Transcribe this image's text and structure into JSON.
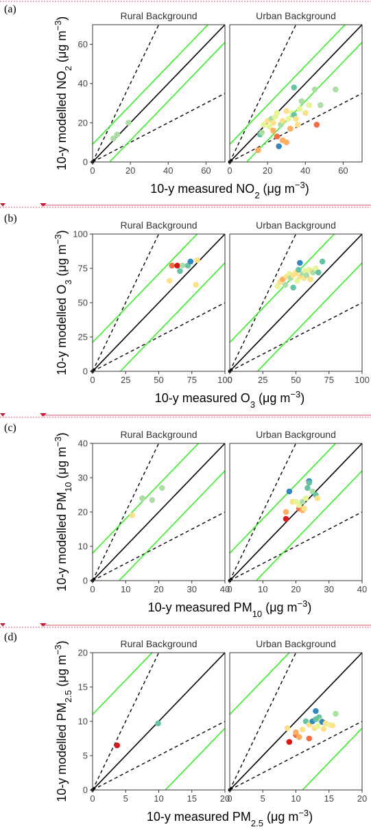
{
  "figure": {
    "colors": {
      "identity": "#000000",
      "factor_two": "#000000",
      "nmb": "#33ee22",
      "palette": [
        "#d7191c",
        "#f46d43",
        "#fdae61",
        "#fee08b",
        "#e6f598",
        "#abdda4",
        "#66c2a5",
        "#3288bd"
      ]
    },
    "separator_color": "#c41e3a"
  },
  "chart_data": [
    {
      "type": "scatter",
      "panel_label": "(a)",
      "xlabel": {
        "pre": "10-y measured NO",
        "sub": "2",
        "post": " (μg m",
        "sup": "−3",
        "end": ")"
      },
      "ylabel": {
        "pre": "10-y modelled NO",
        "sub": "2",
        "post": " (μg m",
        "sup": "−3",
        "end": ")"
      },
      "xlim": [
        0,
        70
      ],
      "ylim": [
        0,
        70
      ],
      "ticks": [
        0,
        20,
        40,
        60
      ],
      "nmb_offset": 9,
      "facets": [
        {
          "title": "Rural Background",
          "points": [
            [
              11,
              12,
              5
            ],
            [
              13,
              14,
              5
            ],
            [
              19,
              20,
              5
            ]
          ]
        },
        {
          "title": "Urban Background",
          "points": [
            [
              15,
              6,
              2
            ],
            [
              16,
              14,
              6
            ],
            [
              17,
              15,
              5
            ],
            [
              18,
              19,
              4
            ],
            [
              20,
              21,
              3
            ],
            [
              21,
              18,
              4
            ],
            [
              22,
              22,
              5
            ],
            [
              23,
              20,
              3
            ],
            [
              23,
              16,
              2
            ],
            [
              24,
              23,
              4
            ],
            [
              25,
              25,
              4
            ],
            [
              25,
              13,
              1
            ],
            [
              26,
              8,
              7
            ],
            [
              27,
              19,
              5
            ],
            [
              28,
              21,
              3
            ],
            [
              28,
              11,
              2
            ],
            [
              30,
              10,
              2
            ],
            [
              30,
              26,
              3
            ],
            [
              31,
              22,
              4
            ],
            [
              32,
              17,
              2
            ],
            [
              33,
              25,
              4
            ],
            [
              34,
              24,
              6
            ],
            [
              34,
              38,
              6
            ],
            [
              35,
              22,
              3
            ],
            [
              36,
              19,
              3
            ],
            [
              37,
              27,
              4
            ],
            [
              38,
              31,
              5
            ],
            [
              40,
              25,
              3
            ],
            [
              42,
              29,
              4
            ],
            [
              45,
              37,
              5
            ],
            [
              46,
              19,
              1
            ],
            [
              48,
              29,
              5
            ],
            [
              56,
              37,
              5
            ]
          ]
        }
      ]
    },
    {
      "type": "scatter",
      "panel_label": "(b)",
      "xlabel": {
        "pre": "10-y measured O",
        "sub": "3",
        "post": " (μg m",
        "sup": "−3",
        "end": ")"
      },
      "ylabel": {
        "pre": "10-y modelled O",
        "sub": "3",
        "post": " (μg m",
        "sup": "−3",
        "end": ")"
      },
      "xlim": [
        0,
        100
      ],
      "ylim": [
        0,
        100
      ],
      "ticks": [
        0,
        25,
        50,
        75,
        100
      ],
      "nmb_offset": 21,
      "facets": [
        {
          "title": "Rural Background",
          "points": [
            [
              58,
              66,
              3
            ],
            [
              60,
              77,
              1
            ],
            [
              64,
              77,
              0
            ],
            [
              66,
              73,
              6
            ],
            [
              68,
              77,
              5
            ],
            [
              72,
              77,
              6
            ],
            [
              74,
              80,
              7
            ],
            [
              78,
              63,
              3
            ],
            [
              79,
              81,
              3
            ]
          ]
        },
        {
          "title": "Urban Background",
          "points": [
            [
              36,
              62,
              4
            ],
            [
              38,
              65,
              3
            ],
            [
              40,
              67,
              2
            ],
            [
              42,
              63,
              5
            ],
            [
              43,
              69,
              3
            ],
            [
              45,
              71,
              4
            ],
            [
              46,
              68,
              5
            ],
            [
              48,
              70,
              3
            ],
            [
              48,
              61,
              6
            ],
            [
              50,
              72,
              3
            ],
            [
              51,
              66,
              4
            ],
            [
              52,
              74,
              6
            ],
            [
              53,
              69,
              3
            ],
            [
              53,
              79,
              7
            ],
            [
              55,
              71,
              5
            ],
            [
              56,
              68,
              3
            ],
            [
              57,
              73,
              4
            ],
            [
              58,
              70,
              5
            ],
            [
              60,
              74,
              4
            ],
            [
              61,
              67,
              3
            ],
            [
              62,
              73,
              3
            ],
            [
              63,
              72,
              5
            ],
            [
              65,
              75,
              4
            ],
            [
              67,
              72,
              6
            ],
            [
              70,
              80,
              6
            ]
          ]
        }
      ]
    },
    {
      "type": "scatter",
      "panel_label": "(c)",
      "xlabel": {
        "pre": "10-y measured PM",
        "sub": "10",
        "post": " (μg m",
        "sup": "−3",
        "end": ")"
      },
      "ylabel": {
        "pre": "10-y modelled PM",
        "sub": "10",
        "post": " (μg m",
        "sup": "−3",
        "end": ")"
      },
      "xlim": [
        0,
        40
      ],
      "ylim": [
        0,
        40
      ],
      "ticks": [
        0,
        10,
        20,
        30,
        40
      ],
      "nmb_offset": 8,
      "facets": [
        {
          "title": "Rural Background",
          "points": [
            [
              12,
              19,
              3
            ],
            [
              15,
              24,
              5
            ],
            [
              18,
              23.5,
              5
            ],
            [
              21,
              27,
              5
            ]
          ]
        },
        {
          "title": "Urban Background",
          "points": [
            [
              17,
              18,
              0
            ],
            [
              17,
              20,
              2
            ],
            [
              18,
              26,
              7
            ],
            [
              19,
              23,
              3
            ],
            [
              20,
              23,
              4
            ],
            [
              21,
              21,
              1
            ],
            [
              21,
              22,
              4
            ],
            [
              22,
              20.5,
              2
            ],
            [
              22,
              23,
              5
            ],
            [
              22.5,
              21,
              3
            ],
            [
              23,
              24,
              4
            ],
            [
              23.5,
              27,
              6
            ],
            [
              24,
              29,
              7
            ],
            [
              24,
              28.5,
              6
            ],
            [
              25,
              26,
              5
            ],
            [
              26,
              25,
              6
            ],
            [
              26.5,
              24,
              3
            ]
          ]
        }
      ]
    },
    {
      "type": "scatter",
      "panel_label": "(d)",
      "xlabel": {
        "pre": "10-y measured PM",
        "sub": "2.5",
        "post": " (μg m",
        "sup": "−3",
        "end": ")"
      },
      "ylabel": {
        "pre": "10-y modelled PM",
        "sub": "2.5",
        "post": " (μg m",
        "sup": "−3",
        "end": ")"
      },
      "xlim": [
        0,
        20
      ],
      "ylim": [
        0,
        20
      ],
      "ticks": [
        0,
        5,
        10,
        15,
        20
      ],
      "nmb_offset": 11,
      "facets": [
        {
          "title": "Rural Background",
          "points": [
            [
              3.7,
              6.5,
              0
            ],
            [
              9.9,
              9.7,
              6
            ]
          ]
        },
        {
          "title": "Urban Background",
          "points": [
            [
              8.7,
              9,
              3
            ],
            [
              9,
              7,
              0
            ],
            [
              10,
              8,
              1
            ],
            [
              10,
              8.4,
              2
            ],
            [
              10.5,
              7.7,
              2
            ],
            [
              11,
              8.8,
              3
            ],
            [
              11.5,
              10,
              6
            ],
            [
              12,
              7.5,
              1
            ],
            [
              12,
              9.5,
              3
            ],
            [
              12.5,
              10,
              7
            ],
            [
              12.8,
              9,
              3
            ],
            [
              13,
              11.5,
              7
            ],
            [
              13,
              10.3,
              6
            ],
            [
              13.3,
              9.3,
              4
            ],
            [
              13.5,
              10.6,
              6
            ],
            [
              13.8,
              10.1,
              5
            ],
            [
              14,
              9.9,
              7
            ],
            [
              14.2,
              8.9,
              3
            ],
            [
              14.5,
              9.7,
              3
            ],
            [
              15,
              9.5,
              4
            ],
            [
              15.5,
              9.4,
              3
            ],
            [
              16,
              11.1,
              5
            ]
          ]
        }
      ]
    }
  ]
}
